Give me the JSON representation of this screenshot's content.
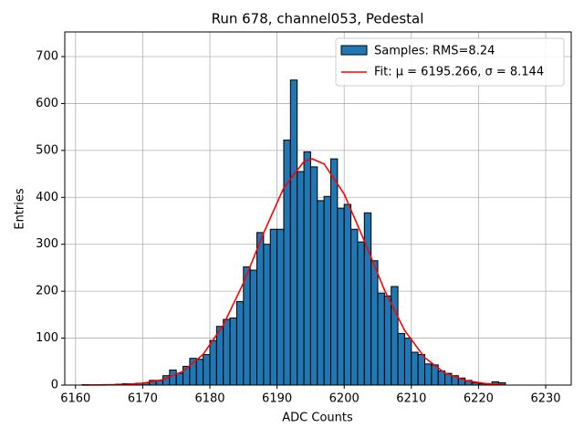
{
  "chart_data": {
    "type": "histogram",
    "title": "Run 678, channel053, Pedestal",
    "xlabel": "ADC Counts",
    "ylabel": "Entries",
    "name": "Samples: RMS=8.24",
    "color": "#1f77b4",
    "edgecolor": "#000000",
    "bins": [
      6161,
      6162,
      6163,
      6164,
      6165,
      6166,
      6167,
      6168,
      6169,
      6170,
      6171,
      6172,
      6173,
      6174,
      6175,
      6176,
      6177,
      6178,
      6179,
      6180,
      6181,
      6182,
      6183,
      6184,
      6185,
      6186,
      6187,
      6188,
      6189,
      6190,
      6191,
      6192,
      6193,
      6194,
      6195,
      6196,
      6197,
      6198,
      6199,
      6200,
      6201,
      6202,
      6203,
      6204,
      6205,
      6206,
      6207,
      6208,
      6209,
      6210,
      6211,
      6212,
      6213,
      6214,
      6215,
      6216,
      6217,
      6218,
      6219,
      6220,
      6221,
      6222,
      6223,
      6224
    ],
    "values": [
      1,
      0,
      0,
      1,
      1,
      2,
      3,
      3,
      4,
      5,
      10,
      10,
      20,
      32,
      25,
      40,
      57,
      55,
      65,
      95,
      125,
      140,
      143,
      178,
      252,
      245,
      325,
      300,
      332,
      332,
      522,
      650,
      455,
      497,
      465,
      393,
      402,
      482,
      377,
      385,
      332,
      305,
      367,
      265,
      196,
      190,
      210,
      110,
      100,
      70,
      65,
      45,
      43,
      30,
      25,
      20,
      15,
      10,
      5,
      3,
      3,
      7,
      5
    ],
    "fit": {
      "type": "line",
      "name": "Fit: μ = 6195.266, σ = 8.144",
      "color": "#ff0000",
      "x": [
        6161,
        6164,
        6167,
        6170,
        6173,
        6176,
        6179,
        6182,
        6185,
        6188,
        6191,
        6194,
        6195.266,
        6197,
        6200,
        6203,
        6206,
        6209,
        6212,
        6215,
        6218,
        6221,
        6224
      ],
      "values": [
        0.07,
        0.3,
        1.17,
        3.9,
        11.5,
        29.3,
        65.5,
        127.9,
        217.6,
        323.7,
        420.1,
        476.2,
        482,
        471.3,
        407.1,
        307.2,
        202.3,
        116.3,
        58.4,
        25.6,
        9.8,
        3.3,
        0.95
      ]
    },
    "xlim": [
      6158.4,
      6233.8
    ],
    "ylim": [
      0,
      752.5
    ],
    "xticks": [
      6160,
      6170,
      6180,
      6190,
      6200,
      6210,
      6220,
      6230
    ],
    "yticks": [
      0,
      100,
      200,
      300,
      400,
      500,
      600,
      700
    ],
    "grid": true,
    "legend": "upper right"
  }
}
